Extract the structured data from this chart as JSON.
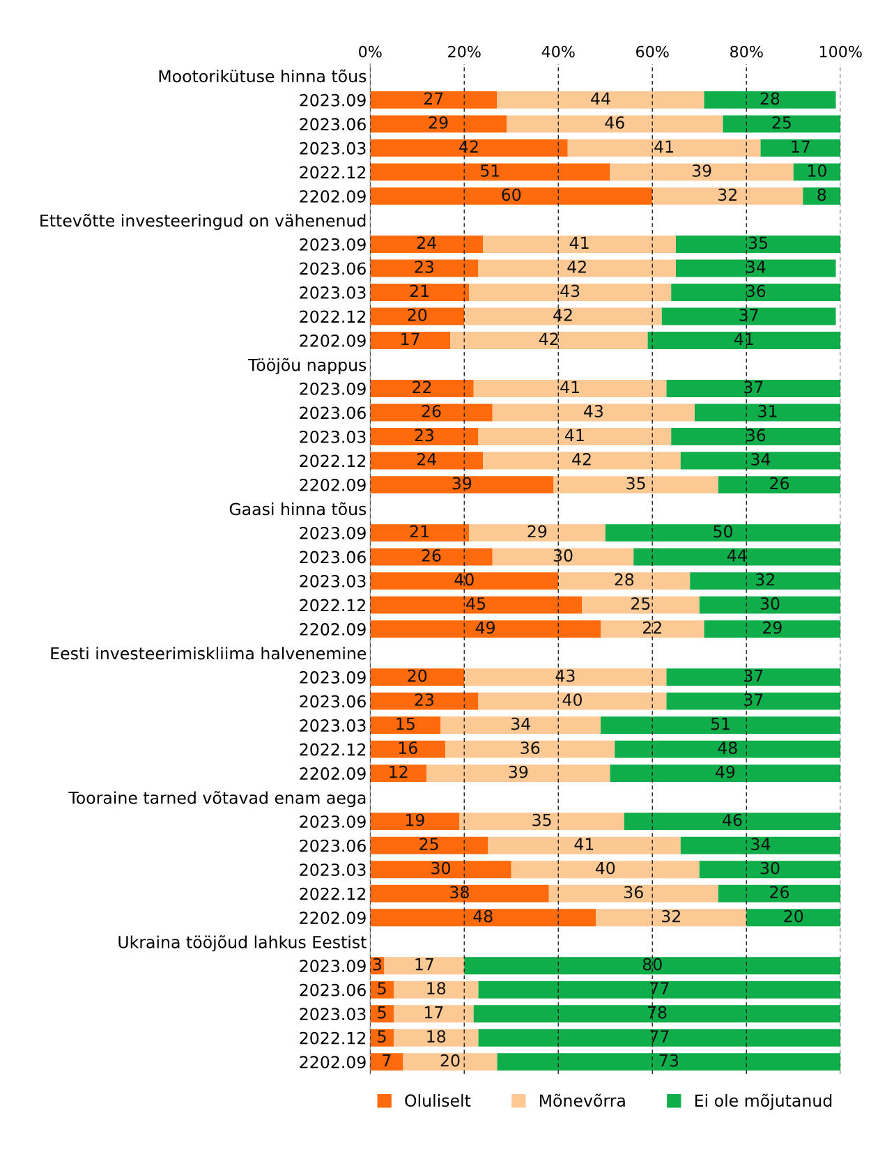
{
  "chart_data": {
    "type": "bar",
    "orientation": "horizontal",
    "stacked": true,
    "data_labels": true,
    "legend": "bottom",
    "grid": "x",
    "line_style": "dashed",
    "xlim": [
      0,
      100
    ],
    "xticks": [
      {
        "value": 0,
        "label": "0%"
      },
      {
        "value": 20,
        "label": "20%"
      },
      {
        "value": 40,
        "label": "40%"
      },
      {
        "value": 60,
        "label": "60%"
      },
      {
        "value": 80,
        "label": "80%"
      },
      {
        "value": 100,
        "label": "100%"
      }
    ],
    "categories": [
      "Mootorikütuse hinna tõus",
      "2023.09",
      "2023.06",
      "2023.03",
      "2022.12",
      "2202.09",
      "Ettevõtte investeeringud on vähenenud",
      "2023.09",
      "2023.06",
      "2023.03",
      "2022.12",
      "2202.09",
      "Tööjõu nappus",
      "2023.09",
      "2023.06",
      "2023.03",
      "2022.12",
      "2202.09",
      "Gaasi hinna tõus",
      "2023.09",
      "2023.06",
      "2023.03",
      "2022.12",
      "2202.09",
      "Eesti investeerimiskliima halvenemine",
      "2023.09",
      "2023.06",
      "2023.03",
      "2022.12",
      "2202.09",
      "Tooraine tarned võtavad enam aega",
      "2023.09",
      "2023.06",
      "2023.03",
      "2022.12",
      "2202.09",
      "Ukraina tööjõud lahkus Eestist",
      "2023.09",
      "2023.06",
      "2023.03",
      "2022.12",
      "2202.09"
    ],
    "series": [
      {
        "name": "Oluliselt",
        "color": "#ff6a0d",
        "values": [
          null,
          27,
          29,
          42,
          51,
          60,
          null,
          24,
          23,
          21,
          20,
          17,
          null,
          22,
          26,
          23,
          24,
          39,
          null,
          21,
          26,
          40,
          45,
          49,
          null,
          20,
          23,
          15,
          16,
          12,
          null,
          19,
          25,
          30,
          38,
          48,
          null,
          3,
          5,
          5,
          5,
          7
        ]
      },
      {
        "name": "Mõnevõrra",
        "color": "#fcc894",
        "values": [
          null,
          44,
          46,
          41,
          39,
          32,
          null,
          41,
          42,
          43,
          42,
          42,
          null,
          41,
          43,
          41,
          42,
          35,
          null,
          29,
          30,
          28,
          25,
          22,
          null,
          43,
          40,
          34,
          36,
          39,
          null,
          35,
          41,
          40,
          36,
          32,
          null,
          17,
          18,
          17,
          18,
          20
        ]
      },
      {
        "name": "Ei ole mõjutanud",
        "color": "#0fae4b",
        "values": [
          null,
          28,
          25,
          17,
          10,
          8,
          null,
          35,
          34,
          36,
          37,
          41,
          null,
          37,
          31,
          36,
          34,
          26,
          null,
          50,
          44,
          32,
          30,
          29,
          null,
          37,
          37,
          51,
          48,
          49,
          null,
          46,
          34,
          30,
          26,
          20,
          null,
          80,
          77,
          78,
          77,
          73
        ]
      }
    ]
  }
}
